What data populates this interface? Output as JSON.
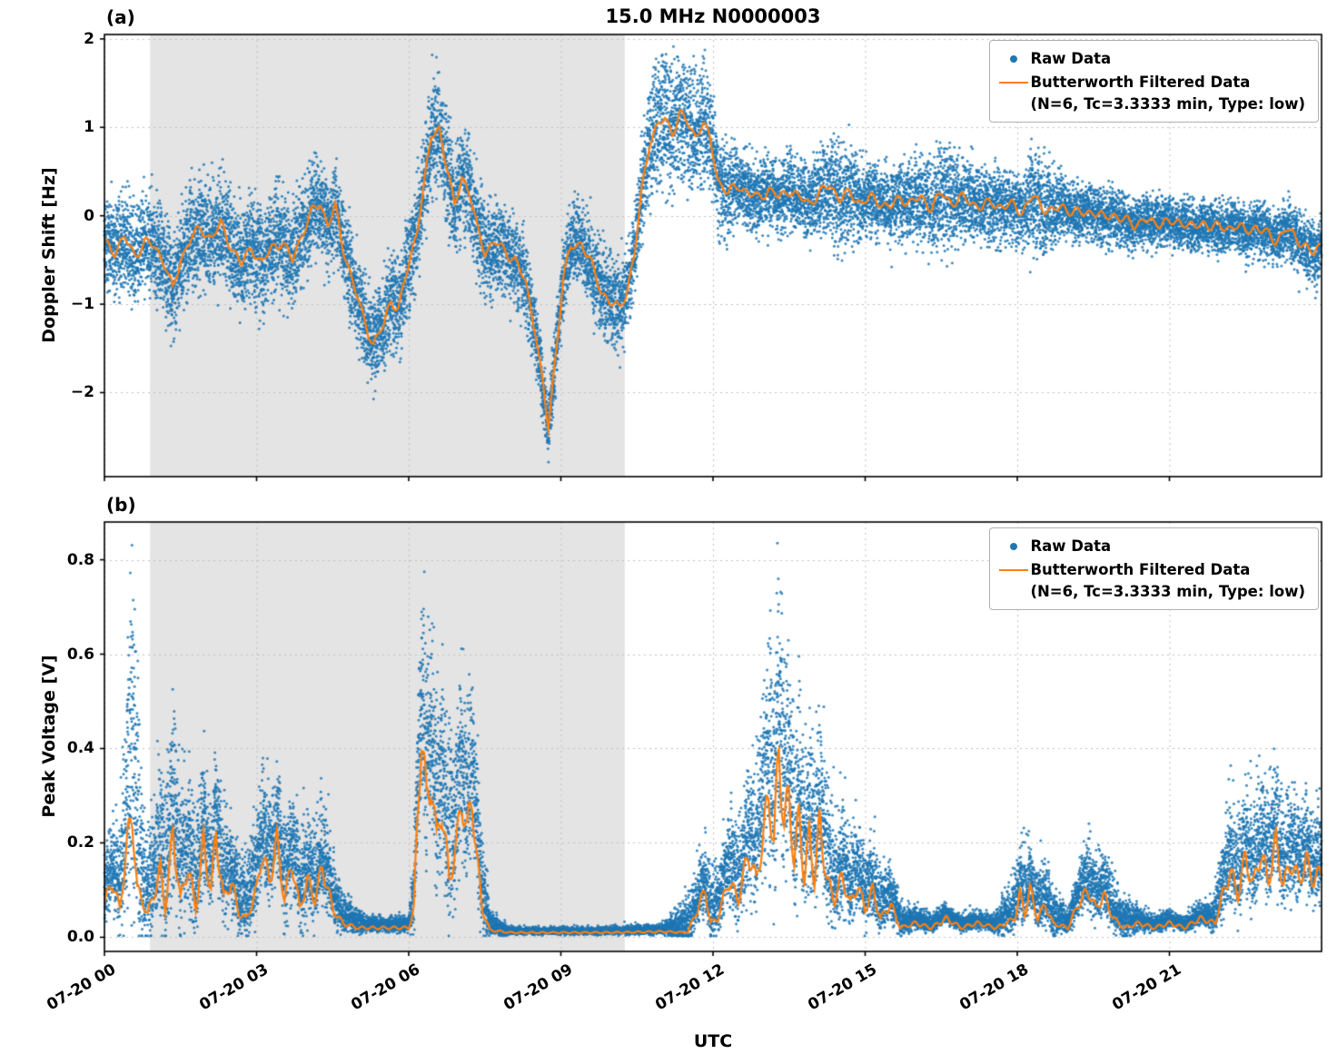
{
  "figure": {
    "title": "15.0 MHz N0000003",
    "xlabel": "UTC",
    "x_tick_hours": [
      0,
      3,
      6,
      9,
      12,
      15,
      18,
      21
    ],
    "x_tick_labels": [
      "07-20 00",
      "07-20 03",
      "07-20 06",
      "07-20 09",
      "07-20 12",
      "07-20 15",
      "07-20 18",
      "07-20 21"
    ],
    "colors": {
      "raw": "#1f77b4",
      "filtered": "#ff7f0e",
      "shade": "#e4e4e4",
      "grid": "#bfbfbf",
      "spine": "#000000"
    },
    "legend": {
      "raw_label": "Raw Data",
      "filtered_label": "Butterworth Filtered Data",
      "filtered_sublabel": "(N=6, Tc=3.3333 min, Type: low)"
    }
  },
  "chart_data": [
    {
      "type": "scatter",
      "panel": "a",
      "label": "(a)",
      "ylabel": "Doppler Shift [Hz]",
      "ylim": [
        -2.95,
        2.05
      ],
      "yticks": [
        2,
        1,
        0,
        -1,
        -2
      ],
      "ytick_labels": [
        "2",
        "1",
        "0",
        "−1",
        "−2"
      ],
      "xlim_hours": [
        0,
        24
      ],
      "shaded_hours": [
        0.9,
        10.26
      ],
      "series": [
        {
          "name": "Raw Data",
          "style": "scatter"
        },
        {
          "name": "Butterworth Filtered Data (N=6, Tc=3.3333 min, Type: low)",
          "style": "line"
        }
      ],
      "filtered_keypoints": [
        [
          0,
          -0.3
        ],
        [
          0.2,
          -0.4
        ],
        [
          0.4,
          -0.25
        ],
        [
          0.6,
          -0.45
        ],
        [
          0.8,
          -0.3
        ],
        [
          1,
          -0.35
        ],
        [
          1.2,
          -0.55
        ],
        [
          1.35,
          -0.85
        ],
        [
          1.5,
          -0.5
        ],
        [
          1.7,
          -0.25
        ],
        [
          1.9,
          -0.15
        ],
        [
          2.1,
          -0.25
        ],
        [
          2.3,
          -0.1
        ],
        [
          2.5,
          -0.35
        ],
        [
          2.7,
          -0.55
        ],
        [
          2.9,
          -0.35
        ],
        [
          3.1,
          -0.55
        ],
        [
          3.3,
          -0.35
        ],
        [
          3.5,
          -0.3
        ],
        [
          3.7,
          -0.5
        ],
        [
          3.9,
          -0.2
        ],
        [
          4.1,
          0.05
        ],
        [
          4.25,
          0.15
        ],
        [
          4.4,
          -0.1
        ],
        [
          4.55,
          0.1
        ],
        [
          4.7,
          -0.35
        ],
        [
          4.9,
          -0.75
        ],
        [
          5.1,
          -1.15
        ],
        [
          5.3,
          -1.45
        ],
        [
          5.5,
          -1.25
        ],
        [
          5.65,
          -0.95
        ],
        [
          5.8,
          -1.05
        ],
        [
          6,
          -0.55
        ],
        [
          6.15,
          -0.2
        ],
        [
          6.3,
          0.35
        ],
        [
          6.45,
          0.9
        ],
        [
          6.6,
          1
        ],
        [
          6.75,
          0.55
        ],
        [
          6.9,
          0.1
        ],
        [
          7.05,
          0.45
        ],
        [
          7.2,
          0.25
        ],
        [
          7.35,
          -0.15
        ],
        [
          7.5,
          -0.4
        ],
        [
          7.7,
          -0.3
        ],
        [
          7.9,
          -0.4
        ],
        [
          8.1,
          -0.5
        ],
        [
          8.3,
          -0.75
        ],
        [
          8.5,
          -1.3
        ],
        [
          8.65,
          -1.95
        ],
        [
          8.75,
          -2.4
        ],
        [
          8.9,
          -1.55
        ],
        [
          9.05,
          -0.7
        ],
        [
          9.2,
          -0.35
        ],
        [
          9.4,
          -0.3
        ],
        [
          9.6,
          -0.55
        ],
        [
          9.8,
          -0.85
        ],
        [
          10,
          -1
        ],
        [
          10.15,
          -1.05
        ],
        [
          10.3,
          -0.85
        ],
        [
          10.45,
          -0.45
        ],
        [
          10.6,
          0.3
        ],
        [
          10.75,
          0.85
        ],
        [
          10.9,
          1
        ],
        [
          11.05,
          1.1
        ],
        [
          11.2,
          0.95
        ],
        [
          11.35,
          1.15
        ],
        [
          11.5,
          1.05
        ],
        [
          11.65,
          0.9
        ],
        [
          11.8,
          1.05
        ],
        [
          11.95,
          0.85
        ],
        [
          12.1,
          0.4
        ],
        [
          12.3,
          0.25
        ],
        [
          12.5,
          0.35
        ],
        [
          12.7,
          0.25
        ],
        [
          12.9,
          0.2
        ],
        [
          13.1,
          0.3
        ],
        [
          13.3,
          0.2
        ],
        [
          13.5,
          0.3
        ],
        [
          13.7,
          0.2
        ],
        [
          13.9,
          0.15
        ],
        [
          14.1,
          0.25
        ],
        [
          14.3,
          0.35
        ],
        [
          14.5,
          0.2
        ],
        [
          14.7,
          0.25
        ],
        [
          14.9,
          0.15
        ],
        [
          15.1,
          0.2
        ],
        [
          15.3,
          0.15
        ],
        [
          15.5,
          0.1
        ],
        [
          15.7,
          0.2
        ],
        [
          15.9,
          0.15
        ],
        [
          16.1,
          0.2
        ],
        [
          16.3,
          0.1
        ],
        [
          16.5,
          0.25
        ],
        [
          16.7,
          0.15
        ],
        [
          16.9,
          0.2
        ],
        [
          17.1,
          0.15
        ],
        [
          17.3,
          0.1
        ],
        [
          17.5,
          0.15
        ],
        [
          17.7,
          0.1
        ],
        [
          17.9,
          0.12
        ],
        [
          18.1,
          0.05
        ],
        [
          18.3,
          0.22
        ],
        [
          18.5,
          0.1
        ],
        [
          18.7,
          0.05
        ],
        [
          18.9,
          0.1
        ],
        [
          19.1,
          0.05
        ],
        [
          19.3,
          0.02
        ],
        [
          19.5,
          0.06
        ],
        [
          19.7,
          -0.03
        ],
        [
          19.9,
          0.02
        ],
        [
          20.1,
          -0.05
        ],
        [
          20.3,
          -0.1
        ],
        [
          20.5,
          -0.04
        ],
        [
          20.7,
          -0.1
        ],
        [
          20.9,
          -0.05
        ],
        [
          21.1,
          -0.1
        ],
        [
          21.3,
          -0.06
        ],
        [
          21.5,
          -0.14
        ],
        [
          21.7,
          -0.08
        ],
        [
          21.9,
          -0.12
        ],
        [
          22.1,
          -0.15
        ],
        [
          22.3,
          -0.1
        ],
        [
          22.5,
          -0.18
        ],
        [
          22.7,
          -0.12
        ],
        [
          22.9,
          -0.2
        ],
        [
          23.1,
          -0.28
        ],
        [
          23.3,
          -0.15
        ],
        [
          23.5,
          -0.25
        ],
        [
          23.7,
          -0.35
        ],
        [
          23.85,
          -0.45
        ],
        [
          24,
          -0.3
        ]
      ],
      "noise_keypoints": [
        [
          0,
          0.25
        ],
        [
          1,
          0.28
        ],
        [
          2,
          0.3
        ],
        [
          3,
          0.3
        ],
        [
          4,
          0.28
        ],
        [
          5,
          0.25
        ],
        [
          6,
          0.28
        ],
        [
          6.5,
          0.3
        ],
        [
          7,
          0.3
        ],
        [
          7.5,
          0.28
        ],
        [
          8,
          0.25
        ],
        [
          8.75,
          0.18
        ],
        [
          9.5,
          0.25
        ],
        [
          10.3,
          0.25
        ],
        [
          10.8,
          0.35
        ],
        [
          11.3,
          0.35
        ],
        [
          11.9,
          0.33
        ],
        [
          12.3,
          0.25
        ],
        [
          13,
          0.2
        ],
        [
          14,
          0.22
        ],
        [
          14.5,
          0.3
        ],
        [
          15,
          0.2
        ],
        [
          16,
          0.22
        ],
        [
          16.5,
          0.3
        ],
        [
          17,
          0.22
        ],
        [
          18,
          0.2
        ],
        [
          18.3,
          0.3
        ],
        [
          19,
          0.18
        ],
        [
          20,
          0.15
        ],
        [
          21,
          0.14
        ],
        [
          22,
          0.14
        ],
        [
          23,
          0.15
        ],
        [
          23.6,
          0.18
        ],
        [
          24,
          0.18
        ]
      ]
    },
    {
      "type": "scatter",
      "panel": "b",
      "label": "(b)",
      "ylabel": "Peak Voltage [V]",
      "ylim": [
        -0.03,
        0.88
      ],
      "yticks": [
        0.0,
        0.2,
        0.4,
        0.6,
        0.8
      ],
      "ytick_labels": [
        "0.0",
        "0.2",
        "0.4",
        "0.6",
        "0.8"
      ],
      "xlim_hours": [
        0,
        24
      ],
      "shaded_hours": [
        0.9,
        10.26
      ],
      "series": [
        {
          "name": "Raw Data",
          "style": "scatter"
        },
        {
          "name": "Butterworth Filtered Data (N=6, Tc=3.3333 min, Type: low)",
          "style": "line"
        }
      ],
      "filtered_keypoints": [
        [
          0,
          0.07
        ],
        [
          0.15,
          0.12
        ],
        [
          0.3,
          0.06
        ],
        [
          0.45,
          0.2
        ],
        [
          0.55,
          0.26
        ],
        [
          0.65,
          0.1
        ],
        [
          0.85,
          0.05
        ],
        [
          1,
          0.1
        ],
        [
          1.1,
          0.14
        ],
        [
          1.2,
          0.06
        ],
        [
          1.35,
          0.22
        ],
        [
          1.5,
          0.08
        ],
        [
          1.65,
          0.15
        ],
        [
          1.8,
          0.06
        ],
        [
          1.95,
          0.2
        ],
        [
          2.1,
          0.1
        ],
        [
          2.2,
          0.22
        ],
        [
          2.35,
          0.08
        ],
        [
          2.5,
          0.12
        ],
        [
          2.65,
          0.05
        ],
        [
          2.8,
          0.04
        ],
        [
          3,
          0.1
        ],
        [
          3.1,
          0.18
        ],
        [
          3.25,
          0.12
        ],
        [
          3.4,
          0.2
        ],
        [
          3.55,
          0.08
        ],
        [
          3.7,
          0.16
        ],
        [
          3.85,
          0.06
        ],
        [
          4,
          0.12
        ],
        [
          4.15,
          0.08
        ],
        [
          4.3,
          0.15
        ],
        [
          4.5,
          0.06
        ],
        [
          4.7,
          0.03
        ],
        [
          5,
          0.02
        ],
        [
          5.5,
          0.02
        ],
        [
          6,
          0.02
        ],
        [
          6.1,
          0.06
        ],
        [
          6.25,
          0.45
        ],
        [
          6.35,
          0.28
        ],
        [
          6.45,
          0.34
        ],
        [
          6.55,
          0.2
        ],
        [
          6.65,
          0.28
        ],
        [
          6.8,
          0.12
        ],
        [
          6.95,
          0.2
        ],
        [
          7.05,
          0.3
        ],
        [
          7.15,
          0.22
        ],
        [
          7.25,
          0.3
        ],
        [
          7.35,
          0.16
        ],
        [
          7.45,
          0.06
        ],
        [
          7.6,
          0.015
        ],
        [
          8,
          0.01
        ],
        [
          9,
          0.01
        ],
        [
          10,
          0.01
        ],
        [
          11,
          0.012
        ],
        [
          11.5,
          0.01
        ],
        [
          11.85,
          0.1
        ],
        [
          11.95,
          0.03
        ],
        [
          12.1,
          0.04
        ],
        [
          12.3,
          0.12
        ],
        [
          12.5,
          0.08
        ],
        [
          12.7,
          0.18
        ],
        [
          12.85,
          0.12
        ],
        [
          13,
          0.22
        ],
        [
          13.1,
          0.3
        ],
        [
          13.2,
          0.2
        ],
        [
          13.3,
          0.4
        ],
        [
          13.4,
          0.24
        ],
        [
          13.5,
          0.3
        ],
        [
          13.6,
          0.16
        ],
        [
          13.7,
          0.26
        ],
        [
          13.8,
          0.12
        ],
        [
          13.9,
          0.22
        ],
        [
          14,
          0.12
        ],
        [
          14.1,
          0.24
        ],
        [
          14.25,
          0.12
        ],
        [
          14.4,
          0.08
        ],
        [
          14.55,
          0.13
        ],
        [
          14.7,
          0.07
        ],
        [
          14.85,
          0.11
        ],
        [
          15,
          0.06
        ],
        [
          15.15,
          0.1
        ],
        [
          15.3,
          0.04
        ],
        [
          15.5,
          0.07
        ],
        [
          15.7,
          0.02
        ],
        [
          16,
          0.03
        ],
        [
          16.3,
          0.02
        ],
        [
          16.6,
          0.04
        ],
        [
          16.9,
          0.02
        ],
        [
          17.2,
          0.03
        ],
        [
          17.6,
          0.02
        ],
        [
          17.95,
          0.04
        ],
        [
          18.05,
          0.09
        ],
        [
          18.15,
          0.05
        ],
        [
          18.25,
          0.1
        ],
        [
          18.4,
          0.04
        ],
        [
          18.55,
          0.07
        ],
        [
          18.7,
          0.03
        ],
        [
          19,
          0.02
        ],
        [
          19.2,
          0.07
        ],
        [
          19.4,
          0.1
        ],
        [
          19.55,
          0.06
        ],
        [
          19.7,
          0.09
        ],
        [
          19.9,
          0.04
        ],
        [
          20.1,
          0.02
        ],
        [
          20.4,
          0.03
        ],
        [
          20.7,
          0.02
        ],
        [
          21,
          0.03
        ],
        [
          21.3,
          0.02
        ],
        [
          21.6,
          0.04
        ],
        [
          21.9,
          0.03
        ],
        [
          22.05,
          0.09
        ],
        [
          22.2,
          0.14
        ],
        [
          22.35,
          0.09
        ],
        [
          22.5,
          0.17
        ],
        [
          22.65,
          0.11
        ],
        [
          22.8,
          0.18
        ],
        [
          22.95,
          0.12
        ],
        [
          23.1,
          0.2
        ],
        [
          23.25,
          0.11
        ],
        [
          23.4,
          0.16
        ],
        [
          23.55,
          0.12
        ],
        [
          23.7,
          0.16
        ],
        [
          23.85,
          0.12
        ],
        [
          24,
          0.14
        ]
      ],
      "noise_keypoints": [
        [
          0,
          0.06
        ],
        [
          0.3,
          0.08
        ],
        [
          0.55,
          0.3
        ],
        [
          0.8,
          0.08
        ],
        [
          1.1,
          0.12
        ],
        [
          1.35,
          0.14
        ],
        [
          1.7,
          0.1
        ],
        [
          2,
          0.1
        ],
        [
          2.3,
          0.08
        ],
        [
          2.7,
          0.06
        ],
        [
          3.1,
          0.09
        ],
        [
          3.5,
          0.08
        ],
        [
          3.9,
          0.08
        ],
        [
          4.3,
          0.08
        ],
        [
          4.7,
          0.03
        ],
        [
          5.2,
          0.012
        ],
        [
          6,
          0.012
        ],
        [
          6.3,
          0.18
        ],
        [
          6.6,
          0.16
        ],
        [
          7.1,
          0.14
        ],
        [
          7.4,
          0.1
        ],
        [
          7.6,
          0.02
        ],
        [
          8,
          0.006
        ],
        [
          9.5,
          0.006
        ],
        [
          11,
          0.008
        ],
        [
          11.85,
          0.06
        ],
        [
          12.2,
          0.06
        ],
        [
          12.7,
          0.1
        ],
        [
          13.1,
          0.16
        ],
        [
          13.35,
          0.2
        ],
        [
          13.7,
          0.14
        ],
        [
          14.1,
          0.12
        ],
        [
          14.6,
          0.08
        ],
        [
          15,
          0.07
        ],
        [
          15.4,
          0.05
        ],
        [
          15.8,
          0.02
        ],
        [
          16.5,
          0.015
        ],
        [
          17.5,
          0.012
        ],
        [
          18.1,
          0.06
        ],
        [
          18.5,
          0.05
        ],
        [
          19,
          0.02
        ],
        [
          19.4,
          0.06
        ],
        [
          19.9,
          0.04
        ],
        [
          20.5,
          0.015
        ],
        [
          21.2,
          0.012
        ],
        [
          21.8,
          0.02
        ],
        [
          22.2,
          0.08
        ],
        [
          22.7,
          0.09
        ],
        [
          23.2,
          0.09
        ],
        [
          23.7,
          0.08
        ],
        [
          24,
          0.07
        ]
      ]
    }
  ]
}
